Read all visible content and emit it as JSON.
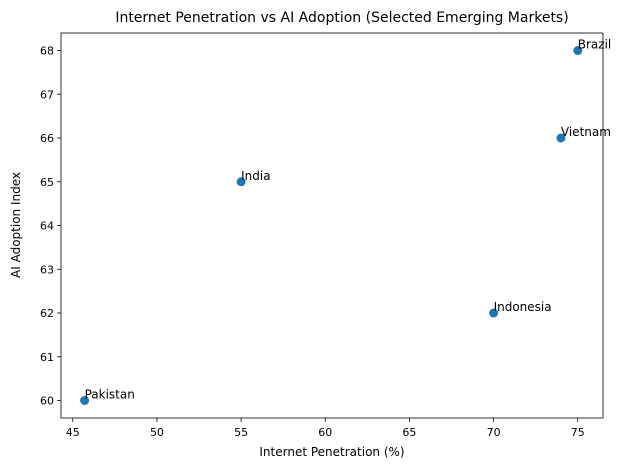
{
  "chart_data": {
    "type": "scatter",
    "title": "Internet Penetration vs AI Adoption (Selected Emerging Markets)",
    "x_label": "Internet Penetration (%)",
    "y_label": "AI Adoption Index",
    "labels": [
      "Pakistan",
      "India",
      "Indonesia",
      "Vietnam",
      "Brazil"
    ],
    "x": [
      45.7,
      55,
      70,
      74,
      75
    ],
    "y": [
      60,
      65,
      62,
      66,
      68
    ],
    "color": "#1f77b4",
    "xlim": [
      44.3,
      76.5
    ],
    "xticks": [
      45,
      50,
      55,
      60,
      65,
      70,
      75
    ],
    "ylim": [
      59.6,
      68.4
    ],
    "yticks": [
      60,
      61,
      62,
      63,
      64,
      65,
      66,
      67,
      68
    ],
    "grid": false
  }
}
